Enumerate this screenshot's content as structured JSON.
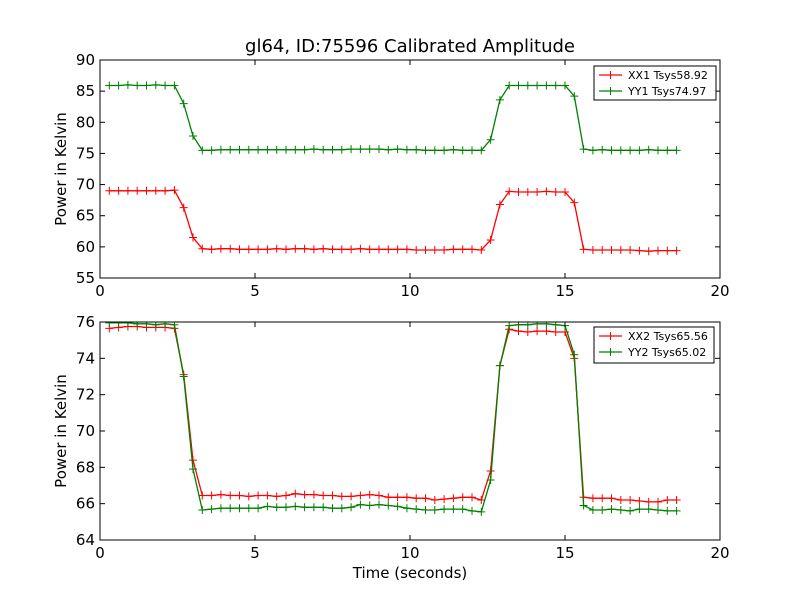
{
  "title": "gl64, ID:75596 Calibrated Amplitude",
  "chart_data": [
    {
      "type": "line",
      "title": "gl64, ID:75596 Calibrated Amplitude",
      "xlabel": "",
      "ylabel": "Power in Kelvin",
      "xlim": [
        0,
        20
      ],
      "ylim": [
        55,
        90
      ],
      "xticks": [
        "0",
        "5",
        "10",
        "15",
        "20"
      ],
      "yticks": [
        "55",
        "60",
        "65",
        "70",
        "75",
        "80",
        "85",
        "90"
      ],
      "grid": false,
      "legend": "top-right",
      "series": [
        {
          "name": "XX1 Tsys58.92",
          "color": "#ff0000",
          "x": [
            0.3,
            0.6,
            0.9,
            1.2,
            1.5,
            1.8,
            2.1,
            2.4,
            2.7,
            3.0,
            3.3,
            3.6,
            3.9,
            4.2,
            4.5,
            4.8,
            5.1,
            5.4,
            5.7,
            6.0,
            6.3,
            6.6,
            6.9,
            7.2,
            7.5,
            7.8,
            8.1,
            8.4,
            8.7,
            9.0,
            9.3,
            9.6,
            9.9,
            10.2,
            10.5,
            10.8,
            11.1,
            11.4,
            11.7,
            12.0,
            12.3,
            12.6,
            12.9,
            13.2,
            13.5,
            13.8,
            14.1,
            14.4,
            14.7,
            15.0,
            15.3,
            15.6,
            15.9,
            16.2,
            16.5,
            16.8,
            17.1,
            17.4,
            17.7,
            18.0,
            18.3,
            18.6
          ],
          "y": [
            69.0,
            69.0,
            69.0,
            69.0,
            69.0,
            69.0,
            69.0,
            69.1,
            66.3,
            61.5,
            59.7,
            59.6,
            59.7,
            59.7,
            59.6,
            59.6,
            59.6,
            59.6,
            59.7,
            59.6,
            59.7,
            59.7,
            59.6,
            59.7,
            59.6,
            59.6,
            59.6,
            59.7,
            59.6,
            59.6,
            59.6,
            59.6,
            59.6,
            59.5,
            59.5,
            59.5,
            59.5,
            59.6,
            59.6,
            59.6,
            59.5,
            61.1,
            66.8,
            68.9,
            68.8,
            68.8,
            68.8,
            68.9,
            68.8,
            68.8,
            67.1,
            59.6,
            59.5,
            59.5,
            59.5,
            59.5,
            59.5,
            59.4,
            59.3,
            59.4,
            59.4,
            59.4
          ]
        },
        {
          "name": "YY1 Tsys74.97",
          "color": "#008000",
          "x": [
            0.3,
            0.6,
            0.9,
            1.2,
            1.5,
            1.8,
            2.1,
            2.4,
            2.7,
            3.0,
            3.3,
            3.6,
            3.9,
            4.2,
            4.5,
            4.8,
            5.1,
            5.4,
            5.7,
            6.0,
            6.3,
            6.6,
            6.9,
            7.2,
            7.5,
            7.8,
            8.1,
            8.4,
            8.7,
            9.0,
            9.3,
            9.6,
            9.9,
            10.2,
            10.5,
            10.8,
            11.1,
            11.4,
            11.7,
            12.0,
            12.3,
            12.6,
            12.9,
            13.2,
            13.5,
            13.8,
            14.1,
            14.4,
            14.7,
            15.0,
            15.3,
            15.6,
            15.9,
            16.2,
            16.5,
            16.8,
            17.1,
            17.4,
            17.7,
            18.0,
            18.3,
            18.6
          ],
          "y": [
            85.9,
            85.9,
            86.0,
            85.9,
            85.9,
            86.0,
            85.9,
            85.9,
            83.0,
            77.8,
            75.5,
            75.5,
            75.6,
            75.6,
            75.6,
            75.6,
            75.6,
            75.6,
            75.6,
            75.6,
            75.6,
            75.6,
            75.7,
            75.6,
            75.6,
            75.6,
            75.7,
            75.7,
            75.7,
            75.7,
            75.6,
            75.7,
            75.6,
            75.6,
            75.5,
            75.5,
            75.5,
            75.6,
            75.5,
            75.5,
            75.5,
            77.2,
            83.6,
            85.9,
            85.9,
            85.9,
            85.9,
            85.9,
            85.9,
            85.9,
            84.2,
            75.7,
            75.5,
            75.6,
            75.5,
            75.5,
            75.5,
            75.5,
            75.6,
            75.5,
            75.5,
            75.5
          ]
        }
      ]
    },
    {
      "type": "line",
      "title": "",
      "xlabel": "Time (seconds)",
      "ylabel": "Power in Kelvin",
      "xlim": [
        0,
        20
      ],
      "ylim": [
        64,
        76
      ],
      "xticks": [
        "0",
        "5",
        "10",
        "15",
        "20"
      ],
      "yticks": [
        "64",
        "66",
        "68",
        "70",
        "72",
        "74",
        "76"
      ],
      "grid": false,
      "legend": "top-right",
      "series": [
        {
          "name": "XX2 Tsys65.56",
          "color": "#ff0000",
          "x": [
            0.3,
            0.6,
            0.9,
            1.2,
            1.5,
            1.8,
            2.1,
            2.4,
            2.7,
            3.0,
            3.3,
            3.6,
            3.9,
            4.2,
            4.5,
            4.8,
            5.1,
            5.4,
            5.7,
            6.0,
            6.3,
            6.6,
            6.9,
            7.2,
            7.5,
            7.8,
            8.1,
            8.4,
            8.7,
            9.0,
            9.3,
            9.6,
            9.9,
            10.2,
            10.5,
            10.8,
            11.1,
            11.4,
            11.7,
            12.0,
            12.3,
            12.6,
            12.9,
            13.2,
            13.5,
            13.8,
            14.1,
            14.4,
            14.7,
            15.0,
            15.3,
            15.6,
            15.9,
            16.2,
            16.5,
            16.8,
            17.1,
            17.4,
            17.7,
            18.0,
            18.3,
            18.6
          ],
          "y": [
            75.65,
            75.7,
            75.75,
            75.75,
            75.7,
            75.7,
            75.7,
            75.65,
            73.1,
            68.4,
            66.45,
            66.45,
            66.5,
            66.45,
            66.45,
            66.4,
            66.45,
            66.45,
            66.4,
            66.45,
            66.55,
            66.5,
            66.5,
            66.45,
            66.45,
            66.4,
            66.4,
            66.45,
            66.5,
            66.45,
            66.35,
            66.35,
            66.35,
            66.3,
            66.3,
            66.2,
            66.25,
            66.3,
            66.35,
            66.35,
            66.2,
            67.8,
            73.6,
            75.6,
            75.5,
            75.45,
            75.5,
            75.5,
            75.45,
            75.45,
            74.0,
            66.35,
            66.3,
            66.3,
            66.3,
            66.2,
            66.2,
            66.15,
            66.1,
            66.1,
            66.2,
            66.2
          ]
        },
        {
          "name": "YY2 Tsys65.02",
          "color": "#008000",
          "x": [
            0.3,
            0.6,
            0.9,
            1.2,
            1.5,
            1.8,
            2.1,
            2.4,
            2.7,
            3.0,
            3.3,
            3.6,
            3.9,
            4.2,
            4.5,
            4.8,
            5.1,
            5.4,
            5.7,
            6.0,
            6.3,
            6.6,
            6.9,
            7.2,
            7.5,
            7.8,
            8.1,
            8.4,
            8.7,
            9.0,
            9.3,
            9.6,
            9.9,
            10.2,
            10.5,
            10.8,
            11.1,
            11.4,
            11.7,
            12.0,
            12.3,
            12.6,
            12.9,
            13.2,
            13.5,
            13.8,
            14.1,
            14.4,
            14.7,
            15.0,
            15.3,
            15.6,
            15.9,
            16.2,
            16.5,
            16.8,
            17.1,
            17.4,
            17.7,
            18.0,
            18.3,
            18.6
          ],
          "y": [
            75.95,
            75.95,
            75.95,
            75.9,
            75.9,
            75.85,
            75.9,
            75.85,
            73.0,
            67.9,
            65.65,
            65.7,
            65.75,
            65.75,
            65.75,
            65.75,
            65.75,
            65.85,
            65.8,
            65.8,
            65.85,
            65.8,
            65.8,
            65.8,
            65.75,
            65.75,
            65.8,
            65.95,
            65.9,
            65.95,
            65.9,
            65.85,
            65.75,
            65.7,
            65.65,
            65.65,
            65.7,
            65.7,
            65.7,
            65.6,
            65.55,
            67.3,
            73.6,
            75.8,
            75.85,
            75.85,
            75.9,
            75.9,
            75.85,
            75.8,
            74.2,
            65.9,
            65.65,
            65.65,
            65.7,
            65.65,
            65.6,
            65.7,
            65.7,
            65.65,
            65.6,
            65.6
          ]
        }
      ]
    }
  ]
}
